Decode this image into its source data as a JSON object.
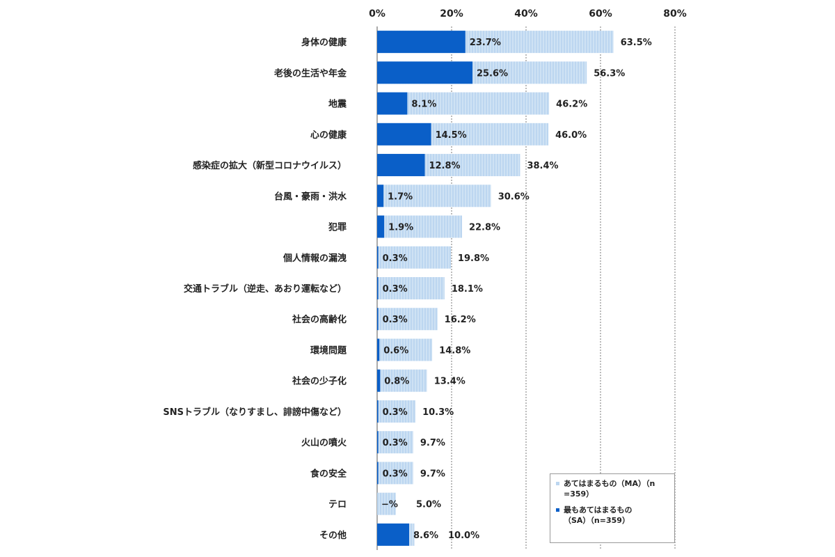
{
  "chart_data": {
    "type": "bar",
    "orientation": "horizontal",
    "xlim": [
      0,
      80
    ],
    "x_ticks": [
      "0%",
      "20%",
      "40%",
      "60%",
      "80%"
    ],
    "grid": "vertical dashed",
    "legend_position": "bottom-right",
    "categories": [
      "身体の健康",
      "老後の生活や年金",
      "地震",
      "心の健康",
      "感染症の拡大（新型コロナウイルス）",
      "台風・豪雨・洪水",
      "犯罪",
      "個人情報の漏洩",
      "交通トラブル（逆走、あおり運転など）",
      "社会の高齢化",
      "環境問題",
      "社会の少子化",
      "SNSトラブル（なりすまし、誹謗中傷など）",
      "火山の噴火",
      "食の安全",
      "テロ",
      "その他"
    ],
    "series": [
      {
        "name": "あてはまるもの（MA）（n=359）",
        "color": "#bcd6f0",
        "values": [
          63.5,
          56.3,
          46.2,
          46.0,
          38.4,
          30.6,
          22.8,
          19.8,
          18.1,
          16.2,
          14.8,
          13.4,
          10.3,
          9.7,
          9.7,
          5.0,
          10.0
        ],
        "labels": [
          "63.5%",
          "56.3%",
          "46.2%",
          "46.0%",
          "38.4%",
          "30.6%",
          "22.8%",
          "19.8%",
          "18.1%",
          "16.2%",
          "14.8%",
          "13.4%",
          "10.3%",
          "9.7%",
          "9.7%",
          "5.0%",
          "10.0%"
        ]
      },
      {
        "name": "最もあてはまるもの（SA）（n=359）",
        "color": "#0a5fc8",
        "values": [
          23.7,
          25.6,
          8.1,
          14.5,
          12.8,
          1.7,
          1.9,
          0.3,
          0.3,
          0.3,
          0.6,
          0.8,
          0.3,
          0.3,
          0.3,
          0,
          8.6
        ],
        "labels": [
          "23.7%",
          "25.6%",
          "8.1%",
          "14.5%",
          "12.8%",
          "1.7%",
          "1.9%",
          "0.3%",
          "0.3%",
          "0.3%",
          "0.6%",
          "0.8%",
          "0.3%",
          "0.3%",
          "0.3%",
          "−%",
          "8.6%"
        ]
      }
    ]
  },
  "legend": {
    "ma_line1": "あてはまるもの（MA）（n",
    "ma_line2": "=359）",
    "sa_line1": "最もあてはまるもの",
    "sa_line2": "（SA）（n=359）"
  }
}
